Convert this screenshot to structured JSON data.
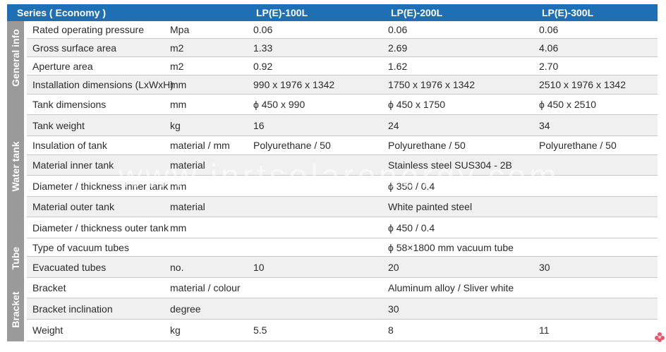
{
  "header": {
    "series": "Series ( Economy )",
    "models": [
      "LP(E)-100L",
      "LP(E)-200L",
      "LP(E)-300L"
    ]
  },
  "groups": [
    {
      "label": "General info",
      "rows": [
        {
          "param": "Rated operating pressure",
          "unit": "Mpa",
          "v1": "0.06",
          "v2": "0.06",
          "v3": "0.06"
        },
        {
          "param": "Gross surface area",
          "unit": "m2",
          "v1": "1.33",
          "v2": "2.69",
          "v3": "4.06"
        },
        {
          "param": "Aperture area",
          "unit": "m2",
          "v1": "0.92",
          "v2": "1.62",
          "v3": "2.70"
        },
        {
          "param": "Installation dimensions (LxWxH)",
          "unit": "mm",
          "v1": "990 x 1976 x 1342",
          "v2": "1750 x 1976 x 1342",
          "v3": "2510 x 1976 x 1342"
        }
      ]
    },
    {
      "label": "Water tank",
      "rows": [
        {
          "param": "Tank dimensions",
          "unit": "mm",
          "v1": "ϕ 450 x 990",
          "v2": "ϕ 450 x 1750",
          "v3": "ϕ 450 x 2510"
        },
        {
          "param": "Tank weight",
          "unit": "kg",
          "v1": "16",
          "v2": "24",
          "v3": "34"
        },
        {
          "param": "Insulation of tank",
          "unit": "material / mm",
          "v1": "Polyurethane / 50",
          "v2": "Polyurethane / 50",
          "v3": "Polyurethane / 50"
        },
        {
          "param": "Material inner tank",
          "unit": "material",
          "v1": "",
          "v2": "Stainless steel SUS304 - 2B",
          "v3": ""
        },
        {
          "param": "Diameter / thickness inner tank",
          "unit": "mm",
          "v1": "",
          "v2": "ϕ 350 / 0.4",
          "v3": ""
        },
        {
          "param": "Material outer tank",
          "unit": "material",
          "v1": "",
          "v2": "White painted steel",
          "v3": ""
        },
        {
          "param": "Diameter / thickness outer tank",
          "unit": "mm",
          "v1": "",
          "v2": "ϕ 450 / 0.4",
          "v3": ""
        }
      ]
    },
    {
      "label": "Tube",
      "rows": [
        {
          "param": "Type of vacuum tubes",
          "unit": "",
          "v1": "",
          "v2": "ϕ 58×1800 mm vacuum tube",
          "v3": ""
        },
        {
          "param": "Evacuated tubes",
          "unit": "no.",
          "v1": "10",
          "v2": "20",
          "v3": "30"
        }
      ]
    },
    {
      "label": "Bracket",
      "rows": [
        {
          "param": "Bracket",
          "unit": "material / colour",
          "v1": "",
          "v2": "Aluminum alloy  / Sliver white",
          "v3": ""
        },
        {
          "param": "Bracket inclination",
          "unit": "degree",
          "v1": "",
          "v2": "30",
          "v3": ""
        },
        {
          "param": "Weight",
          "unit": "kg",
          "v1": "5.5",
          "v2": "8",
          "v3": "11"
        }
      ]
    }
  ],
  "watermark": "www.inrtsolarenergy.com"
}
